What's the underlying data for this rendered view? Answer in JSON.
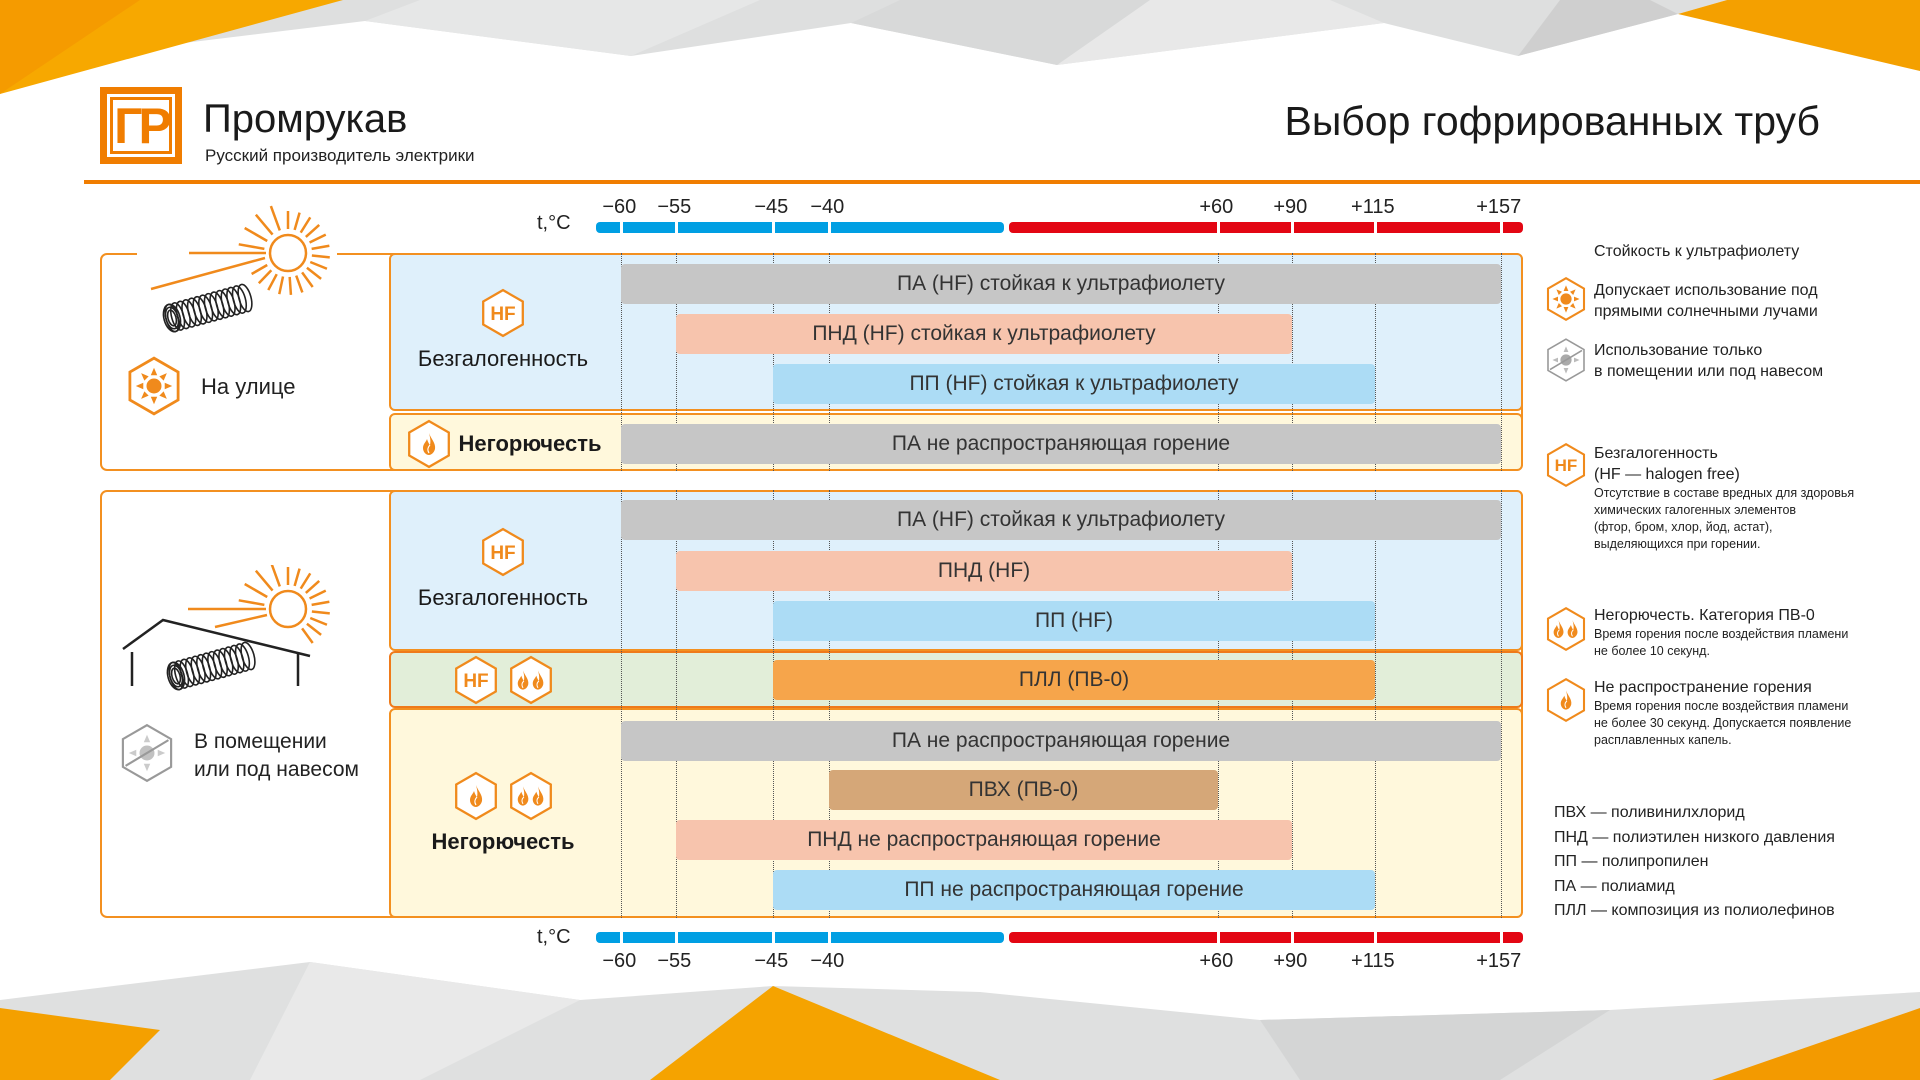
{
  "brand": {
    "logo_text": "ГР",
    "name": "Промрукав",
    "tagline": "Русский производитель электрики"
  },
  "title": "Выбор гофрированных труб",
  "axis": {
    "unit": "t,°C",
    "tick_labels": [
      "−60",
      "−55",
      "−45",
      "−40",
      "+60",
      "+90",
      "+115",
      "+157"
    ]
  },
  "sections": {
    "outdoor": {
      "label": "На улице",
      "hf_group": "Безгалогенность",
      "nonflam_group": "Негорючесть"
    },
    "indoor": {
      "label_line1": "В помещении",
      "label_line2": "или под навесом",
      "hf_group": "Безгалогенность",
      "nonflam_group": "Негорючесть"
    }
  },
  "icons": {
    "hf_text": "HF"
  },
  "legend": {
    "title": "Стойкость к ультрафиолету",
    "uv_ok": {
      "line1": "Допускает использование под",
      "line2": "прямыми солнечными лучами"
    },
    "uv_indoor": {
      "line1": "Использование только",
      "line2": "в помещении или под навесом"
    },
    "hf": {
      "line1": "Безгалогенность",
      "line2": "(HF — halogen free)",
      "desc": [
        "Отсутствие в составе вредных для здоровья",
        "химических галогенных элементов",
        "(фтор, бром, хлор, йод, астат),",
        "выделяющихся при горении."
      ]
    },
    "pv0": {
      "title": "Негорючесть. Категория ПВ-0",
      "desc": [
        "Время горения после воздействия пламени",
        "не более 10 секунд."
      ]
    },
    "nonprop": {
      "title": "Не распространение горения",
      "desc": [
        "Время горения после воздействия пламени",
        "не более 30 секунд. Допускается появление",
        "расплавленных капель."
      ]
    }
  },
  "abbreviations": [
    "ПВХ — поливинилхлорид",
    "ПНД — полиэтилен низкого давления",
    "ПП — полипропилен",
    "ПА — полиамид",
    "ПЛЛ — композиция из полиолефинов"
  ],
  "colors": {
    "accent": "#f07d00",
    "cold": "#009fe3",
    "hot": "#e30613",
    "pa": "#c6c6c6",
    "pnd": "#f7c4ad",
    "pp": "#acdcf5",
    "pll": "#f6a54b",
    "pvh": "#d5a778"
  },
  "chart_data": {
    "type": "bar",
    "orientation": "horizontal-range",
    "title": "Выбор гофрированных труб",
    "xlabel": "t,°C",
    "ticks": [
      -60,
      -55,
      -45,
      -40,
      60,
      90,
      115,
      157
    ],
    "bars": [
      {
        "section": "На улице",
        "group": "Безгалогенность",
        "label": "ПА (HF) стойкая к ультрафиолету",
        "min": -60,
        "max": 157,
        "color": "#c6c6c6"
      },
      {
        "section": "На улице",
        "group": "Безгалогенность",
        "label": "ПНД (HF) стойкая к ультрафиолету",
        "min": -55,
        "max": 90,
        "color": "#f7c4ad"
      },
      {
        "section": "На улице",
        "group": "Безгалогенность",
        "label": "ПП (HF) стойкая к ультрафиолету",
        "min": -45,
        "max": 115,
        "color": "#acdcf5"
      },
      {
        "section": "На улице",
        "group": "Негорючесть",
        "label": "ПА не распространяющая горение",
        "min": -60,
        "max": 157,
        "color": "#c6c6c6"
      },
      {
        "section": "В помещении или под навесом",
        "group": "Безгалогенность",
        "label": "ПА (HF) стойкая к ультрафиолету",
        "min": -60,
        "max": 157,
        "color": "#c6c6c6"
      },
      {
        "section": "В помещении или под навесом",
        "group": "Безгалогенность",
        "label": "ПНД (HF)",
        "min": -55,
        "max": 90,
        "color": "#f7c4ad"
      },
      {
        "section": "В помещении или под навесом",
        "group": "Безгалогенность",
        "label": "ПП (HF)",
        "min": -45,
        "max": 115,
        "color": "#acdcf5"
      },
      {
        "section": "В помещении или под навесом",
        "group": "HF + ПВ-0",
        "label": "ПЛЛ (ПВ-0)",
        "min": -45,
        "max": 115,
        "color": "#f6a54b"
      },
      {
        "section": "В помещении или под навесом",
        "group": "Негорючесть",
        "label": "ПА не распространяющая горение",
        "min": -60,
        "max": 157,
        "color": "#c6c6c6"
      },
      {
        "section": "В помещении или под навесом",
        "group": "Негорючесть",
        "label": "ПВХ (ПВ-0)",
        "min": -40,
        "max": 60,
        "color": "#d5a778"
      },
      {
        "section": "В помещении или под навесом",
        "group": "Негорючесть",
        "label": "ПНД не распространяющая горение",
        "min": -55,
        "max": 90,
        "color": "#f7c4ad"
      },
      {
        "section": "В помещении или под навесом",
        "group": "Негорючесть",
        "label": "ПП не распространяющая горение",
        "min": -45,
        "max": 115,
        "color": "#acdcf5"
      }
    ]
  }
}
